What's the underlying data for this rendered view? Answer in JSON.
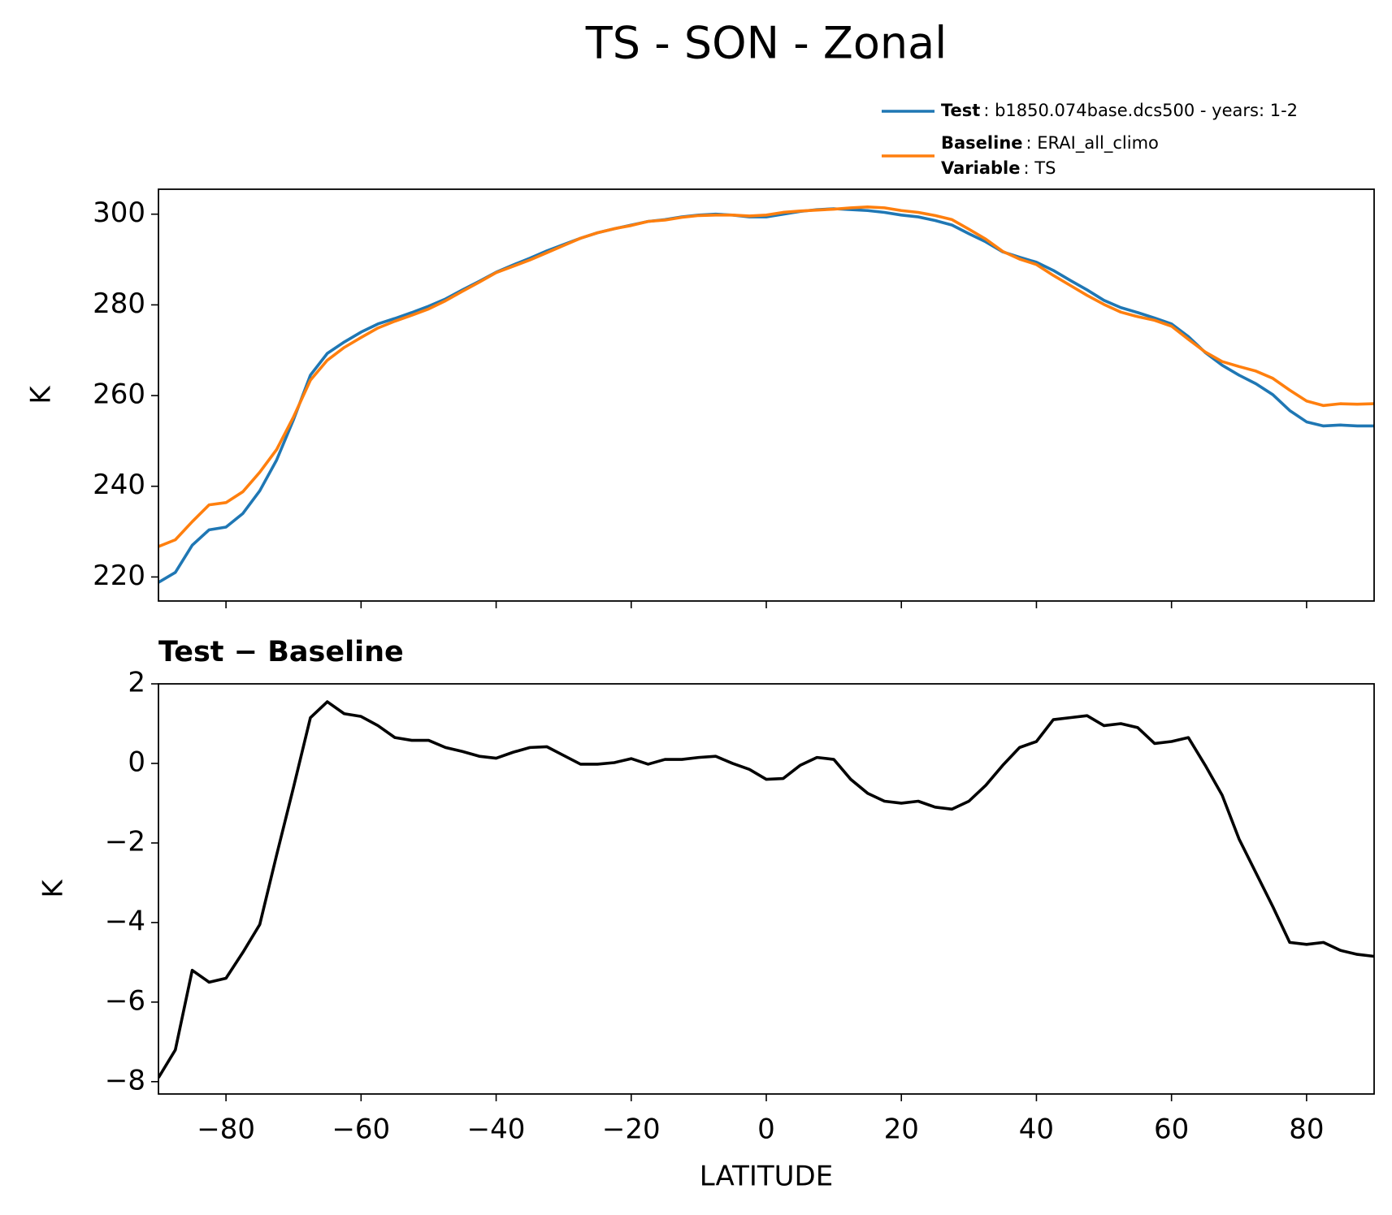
{
  "chart_data": [
    {
      "type": "line",
      "title": "TS - SON - Zonal",
      "ylabel": "K",
      "x": [
        -90,
        -87.5,
        -85,
        -82.5,
        -80,
        -77.5,
        -75,
        -72.5,
        -70,
        -67.5,
        -65,
        -62.5,
        -60,
        -57.5,
        -55,
        -52.5,
        -50,
        -47.5,
        -45,
        -42.5,
        -40,
        -37.5,
        -35,
        -32.5,
        -30,
        -27.5,
        -25,
        -22.5,
        -20,
        -17.5,
        -15,
        -12.5,
        -10,
        -7.5,
        -5,
        -2.5,
        0,
        2.5,
        5,
        7.5,
        10,
        12.5,
        15,
        17.5,
        20,
        22.5,
        25,
        27.5,
        30,
        32.5,
        35,
        37.5,
        40,
        42.5,
        45,
        47.5,
        50,
        52.5,
        55,
        57.5,
        60,
        62.5,
        65,
        67.5,
        70,
        72.5,
        75,
        77.5,
        80,
        82.5,
        85,
        87.5,
        90
      ],
      "series": [
        {
          "name": "Test",
          "info": ": b1850.074base.dcs500 - years: 1-2",
          "color": "#1f77b4",
          "values": [
            218.8,
            221,
            227,
            230.4,
            231,
            234,
            239,
            245.8,
            254.7,
            264.5,
            269.3,
            271.8,
            274,
            275.8,
            277,
            278.3,
            279.7,
            281.3,
            283.3,
            285.2,
            287.2,
            288.8,
            290.3,
            291.9,
            293.3,
            294.7,
            295.9,
            296.8,
            297.6,
            298.4,
            298.8,
            299.4,
            299.8,
            300,
            299.8,
            299.4,
            299.4,
            300,
            300.6,
            301,
            301.2,
            301,
            300.8,
            300.4,
            299.8,
            299.4,
            298.6,
            297.6,
            295.7,
            293.9,
            291.7,
            290.5,
            289.4,
            287.6,
            285.4,
            283.3,
            281,
            279.4,
            278.3,
            277.1,
            275.8,
            273,
            269.5,
            266.7,
            264.5,
            262.6,
            260.2,
            256.7,
            254.2,
            253.3,
            253.5,
            253.3,
            253.3
          ]
        },
        {
          "name": "Baseline",
          "info": ": ERAI_all_climo",
          "extra_name": "Variable",
          "extra_info": ": TS",
          "color": "#ff7f0e",
          "values": [
            226.7,
            228.2,
            232.2,
            235.9,
            236.4,
            238.8,
            243.1,
            248.1,
            255.3,
            263.4,
            267.8,
            270.6,
            272.8,
            274.9,
            276.4,
            277.7,
            279.1,
            280.9,
            283,
            285,
            287.1,
            288.5,
            289.9,
            291.5,
            293.1,
            294.7,
            295.9,
            296.8,
            297.5,
            298.4,
            298.7,
            299.3,
            299.7,
            299.8,
            299.8,
            299.6,
            299.8,
            300.4,
            300.7,
            300.9,
            301.1,
            301.4,
            301.6,
            301.4,
            300.8,
            300.4,
            299.7,
            298.8,
            296.7,
            294.5,
            291.8,
            290.1,
            288.9,
            286.5,
            284.3,
            282.1,
            280.1,
            278.4,
            277.4,
            276.6,
            275.3,
            272.4,
            269.6,
            267.5,
            266.4,
            265.4,
            263.8,
            261.2,
            258.8,
            257.8,
            258.2,
            258.1,
            258.2
          ]
        }
      ],
      "xlim": [
        -90,
        90
      ],
      "xticks": [
        -80,
        -60,
        -40,
        -20,
        0,
        20,
        40,
        60,
        80
      ],
      "show_xticklabels": false,
      "ylim": [
        214.7,
        305.5
      ],
      "yticks": [
        220,
        240,
        260,
        280,
        300
      ],
      "legend": "upper right"
    },
    {
      "type": "line",
      "title": "Test − Baseline",
      "xlabel": "LATITUDE",
      "ylabel": "K",
      "x": [
        -90,
        -87.5,
        -85,
        -82.5,
        -80,
        -77.5,
        -75,
        -72.5,
        -70,
        -67.5,
        -65,
        -62.5,
        -60,
        -57.5,
        -55,
        -52.5,
        -50,
        -47.5,
        -45,
        -42.5,
        -40,
        -37.5,
        -35,
        -32.5,
        -30,
        -27.5,
        -25,
        -22.5,
        -20,
        -17.5,
        -15,
        -12.5,
        -10,
        -7.5,
        -5,
        -2.5,
        0,
        2.5,
        5,
        7.5,
        10,
        12.5,
        15,
        17.5,
        20,
        22.5,
        25,
        27.5,
        30,
        32.5,
        35,
        37.5,
        40,
        42.5,
        45,
        47.5,
        50,
        52.5,
        55,
        57.5,
        60,
        62.5,
        65,
        67.5,
        70,
        72.5,
        75,
        77.5,
        80,
        82.5,
        85,
        87.5,
        90
      ],
      "series": [
        {
          "color": "#000000",
          "values": [
            -7.9,
            -7.2,
            -5.2,
            -5.5,
            -5.4,
            -4.75,
            -4.05,
            -2.3,
            -0.6,
            1.15,
            1.55,
            1.25,
            1.18,
            0.95,
            0.65,
            0.58,
            0.58,
            0.4,
            0.3,
            0.18,
            0.13,
            0.28,
            0.4,
            0.42,
            0.2,
            -0.02,
            -0.02,
            0.02,
            0.12,
            -0.02,
            0.1,
            0.1,
            0.15,
            0.18,
            0,
            -0.15,
            -0.4,
            -0.38,
            -0.05,
            0.15,
            0.1,
            -0.4,
            -0.75,
            -0.95,
            -1,
            -0.95,
            -1.1,
            -1.15,
            -0.95,
            -0.55,
            -0.05,
            0.4,
            0.55,
            1.1,
            1.15,
            1.2,
            0.95,
            1,
            0.9,
            0.5,
            0.55,
            0.65,
            -0.05,
            -0.8,
            -1.9,
            -2.75,
            -3.6,
            -4.5,
            -4.55,
            -4.5,
            -4.7,
            -4.8,
            -4.85
          ]
        }
      ],
      "xlim": [
        -90,
        90
      ],
      "xticks": [
        {
          "value": -80,
          "label": "−80"
        },
        {
          "value": -60,
          "label": "−60"
        },
        {
          "value": -40,
          "label": "−40"
        },
        {
          "value": -20,
          "label": "−20"
        },
        0,
        20,
        40,
        60,
        80
      ],
      "show_xticklabels": true,
      "ylim": [
        -8.31,
        2.0
      ],
      "yticks": [
        {
          "value": -8,
          "label": "−8"
        },
        {
          "value": -6,
          "label": "−6"
        },
        {
          "value": -4,
          "label": "−4"
        },
        {
          "value": -2,
          "label": "−2"
        },
        0,
        2
      ]
    }
  ]
}
